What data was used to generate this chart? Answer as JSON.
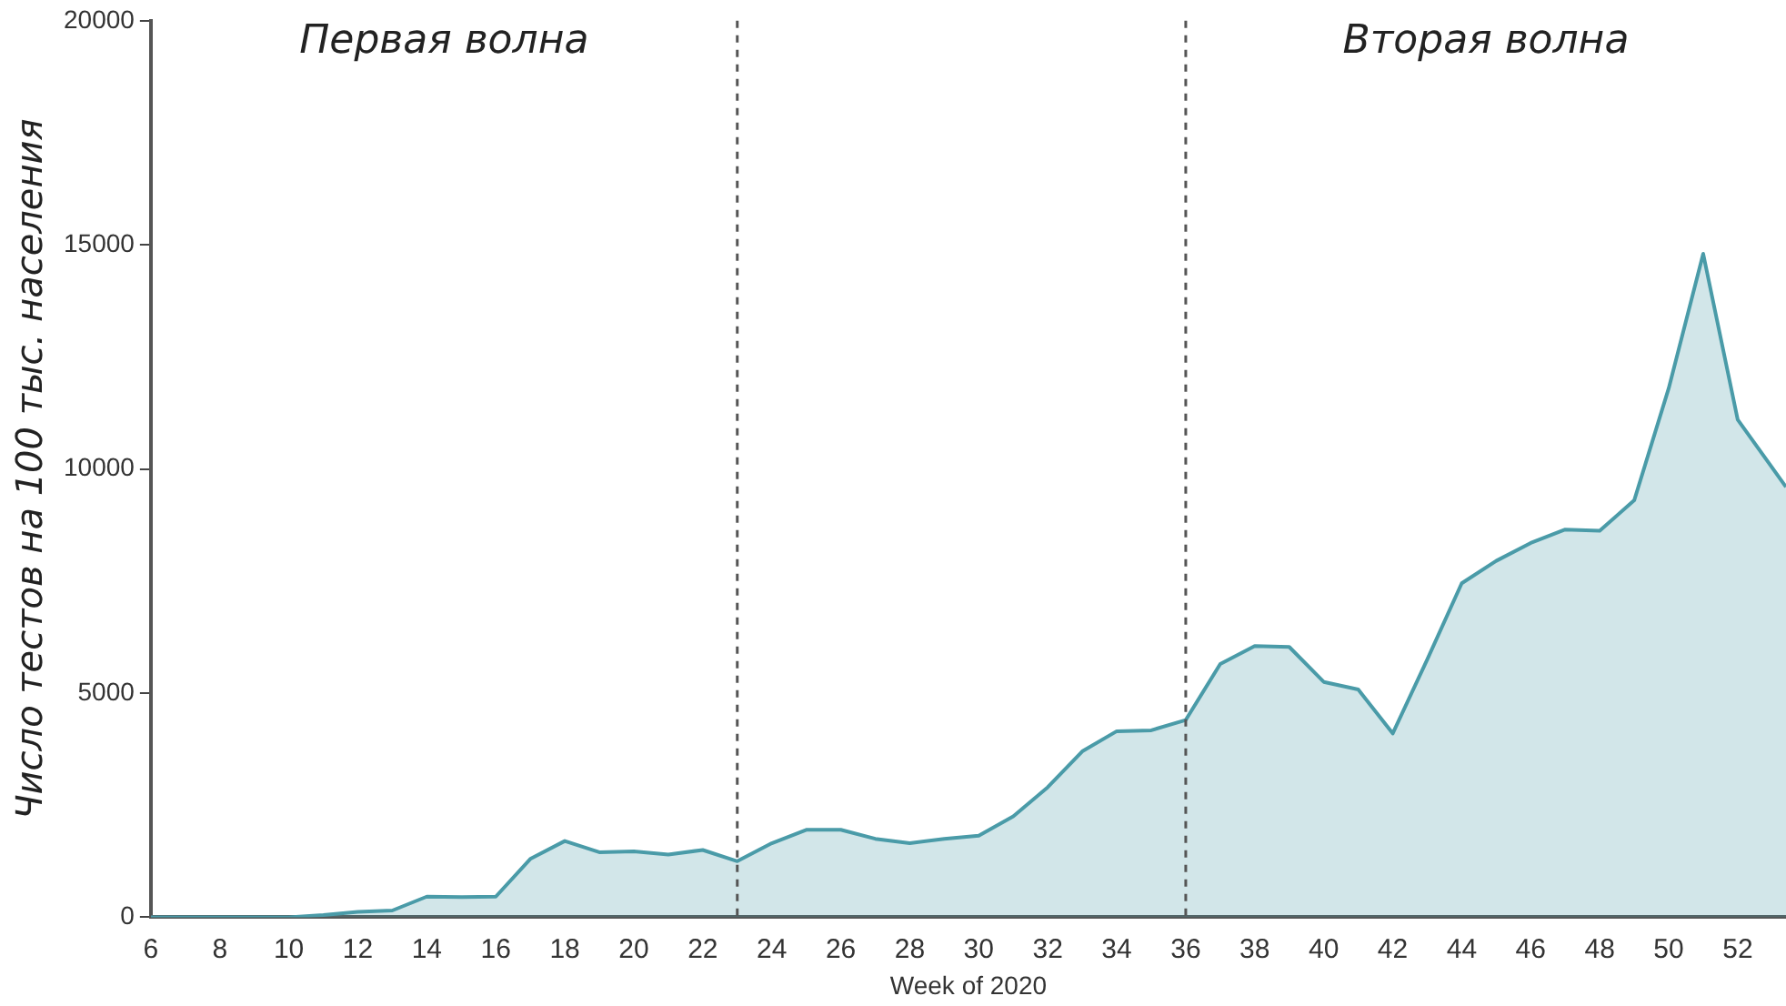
{
  "chart_data": {
    "type": "area",
    "xlabel": "Week of 2020",
    "ylabel": "Число тестов на 100 тыс. населения",
    "annotations": [
      "Первая волна",
      "Вторая волна"
    ],
    "series": [
      {
        "color": "#4a9ba8",
        "x": [
          6,
          7,
          8,
          9,
          10,
          11,
          12,
          13,
          14,
          15,
          16,
          17,
          18,
          19,
          20,
          21,
          22,
          23,
          24,
          25,
          26,
          27,
          28,
          29,
          30,
          31,
          32,
          33,
          34,
          35,
          36,
          37,
          38,
          39,
          40,
          41,
          42,
          43,
          44,
          45,
          46,
          47,
          48,
          49,
          50,
          51,
          52,
          53.4
        ],
        "values": [
          0,
          0,
          0,
          0,
          0,
          50,
          120,
          150,
          460,
          450,
          460,
          1300,
          1700,
          1450,
          1470,
          1400,
          1500,
          1250,
          1650,
          1950,
          1950,
          1750,
          1650,
          1750,
          1820,
          2250,
          2900,
          3700,
          4150,
          4170,
          4400,
          5650,
          6050,
          6030,
          5250,
          5080,
          4100,
          5750,
          7450,
          7950,
          8350,
          8650,
          8620,
          9300,
          11800,
          14800,
          11100,
          9600
        ]
      }
    ],
    "xlim": [
      6,
      53.4
    ],
    "xticks": [
      6,
      8,
      10,
      12,
      14,
      16,
      18,
      20,
      22,
      24,
      26,
      28,
      30,
      32,
      34,
      36,
      38,
      40,
      42,
      44,
      46,
      48,
      50,
      52
    ],
    "ylim": [
      0,
      20000
    ],
    "yticks": [
      0,
      5000,
      10000,
      15000,
      20000
    ],
    "ref_lines": [
      {
        "axis": "x",
        "value": 23,
        "line_style": "dashed",
        "color": "#555555"
      },
      {
        "axis": "x",
        "value": 36,
        "line_style": "dashed",
        "color": "#555555"
      }
    ],
    "grid": false,
    "legend": false
  }
}
